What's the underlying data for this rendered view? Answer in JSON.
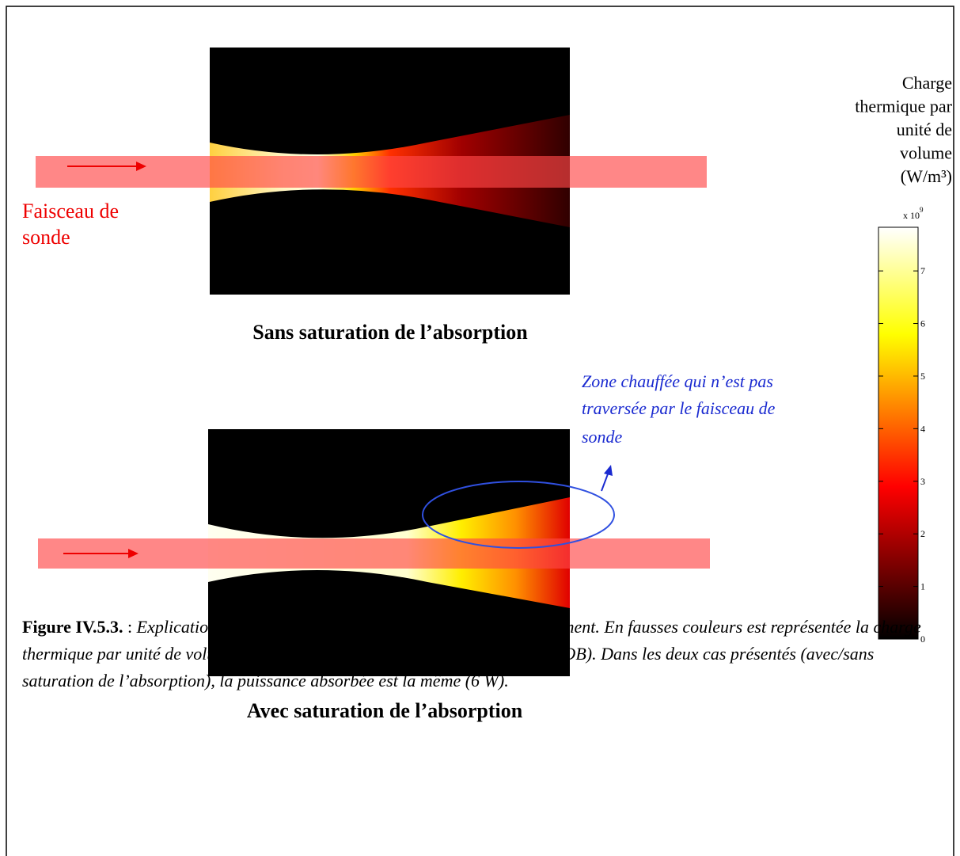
{
  "figure": {
    "top_panel": {
      "caption": "Sans saturation de l’absorption",
      "beam_label_lines": [
        "Faisceau de",
        "sonde"
      ]
    },
    "bottom_panel": {
      "caption": "Avec saturation de l’absorption",
      "annotation_lines": [
        "Zone chauffée qui n’est pas",
        "traversée par le faisceau de",
        "sonde"
      ]
    },
    "colorbar": {
      "title_lines": [
        "Charge",
        "thermique par",
        "unité de",
        "volume",
        "(W/m³)"
      ],
      "multiplier": "x 10",
      "exponent": "9",
      "ylim": [
        0,
        7.83
      ],
      "yticks": [
        0,
        1,
        2,
        3,
        4,
        5,
        6,
        7
      ]
    },
    "caption": {
      "label": "Figure IV.5.3.",
      "separator": " : ",
      "text": "Explication qualitative de l’inflexion observée expérimentalement. En fausses couleurs est représentée la charge thermique par unité de volume (les valeurs correspondent ici à celles du GdCOB). Dans les deux cas présentés (avec/sans saturation de l’absorption), la puissance absorbée est la même (6 W)."
    }
  }
}
